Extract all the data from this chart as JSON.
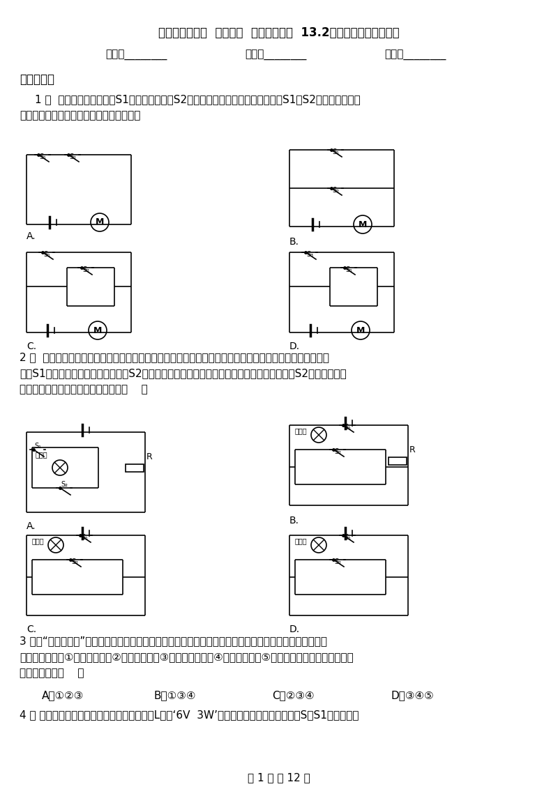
{
  "title": "物理九年级上册  第十三章  探究简单思路  13.2电路的组成和连接方式",
  "field1": "姓名：________",
  "field2": "班级：________",
  "field3": "成绩：________",
  "section1": "一、单选题",
  "q1_line1": "1 ．  当微波炉的炉门开关S1断开，控制开关S2闭合时，微波炉不工作；而只有当S1与S2都闭合时，微波",
  "q1_line2": "炉才能正常工作。图中符合要求的电路是：",
  "q2_line1": "2 ．  如图所示，为保证司乘人员的安全，轿车上设有安全带未系提示系统。当乘客坐在座椅上时，座椅下的",
  "q2_line2": "开关S1闭合。若未系安全带，则开关S2断开，仪表盘上的指示灯亮起；若系上安全带，则开关S2闭合，指示灯",
  "q2_line3": "息灯。下列设计比较合理的电路图是（    ）",
  "q3_line1": "3 ．在“观察手电筒”的活动中，小明将两节干电池装入手电筒后，按下手电筒的按鈕，发现手电筒不发光，",
  "q3_line2": "则原因可能有：①电池没电了，②灯罩松动了，③开关接触不良，④电池装反了，⑤弹簧提供的电能太少。其中，",
  "q3_line3": "正确的一组是（    ）",
  "q3_A": "A．①②③",
  "q3_B": "B．①③④",
  "q3_C": "C．②③④",
  "q3_D": "D．③④⑤",
  "q4_line1": "4 ． 如图所示的电路中，电源电压恒定，灯泡L标有‘6V  3W’的字样（灯丝电阴不变）。当S、S1均闭合时，",
  "page_info": "第 1 页 共 12 页",
  "bg_color": "#ffffff",
  "text_color": "#000000"
}
